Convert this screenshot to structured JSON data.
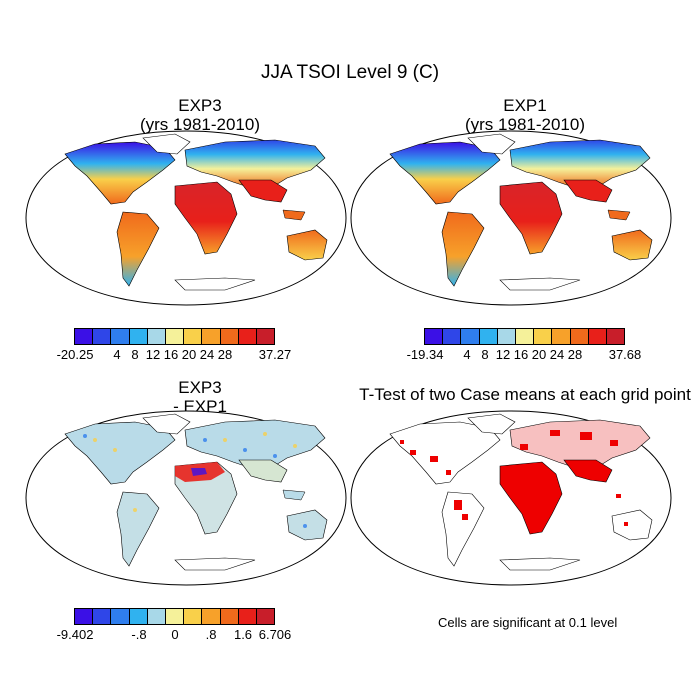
{
  "figure": {
    "title": "JJA TSOI Level 9 (C)"
  },
  "panels": [
    {
      "id": "exp3",
      "title_line1": "EXP3",
      "title_line2": "(yrs 1981-2010)"
    },
    {
      "id": "exp1",
      "title_line1": "EXP1",
      "title_line2": "(yrs 1981-2010)"
    },
    {
      "id": "diff",
      "title_line1": "EXP3",
      "title_line2": "- EXP1"
    },
    {
      "id": "ttest",
      "title_line1": "T-Test of two Case means at each grid point"
    }
  ],
  "colorbars": {
    "exp3": {
      "colors": [
        "#3b10e6",
        "#2f46e8",
        "#2f7eee",
        "#30b2ef",
        "#a8d8e8",
        "#f5f19a",
        "#f9d04a",
        "#f7a12a",
        "#f06a1c",
        "#e8201a",
        "#c81e2a"
      ],
      "labels": [
        "-20.25",
        "4",
        "8",
        "12",
        "16",
        "20",
        "24",
        "28",
        "37.27"
      ]
    },
    "exp1": {
      "colors": [
        "#3b10e6",
        "#2f46e8",
        "#2f7eee",
        "#30b2ef",
        "#a8d8e8",
        "#f5f19a",
        "#f9d04a",
        "#f7a12a",
        "#f06a1c",
        "#e8201a",
        "#c81e2a"
      ],
      "labels": [
        "-19.34",
        "4",
        "8",
        "12",
        "16",
        "20",
        "24",
        "28",
        "37.68"
      ]
    },
    "diff": {
      "colors": [
        "#3b10e6",
        "#2f46e8",
        "#2f7eee",
        "#30b2ef",
        "#a8d8e8",
        "#f5f19a",
        "#f9d04a",
        "#f7a12a",
        "#f06a1c",
        "#e8201a",
        "#c81e2a"
      ],
      "labels": [
        "-9.402",
        "-.8",
        "0",
        ".8",
        "1.6",
        "6.706"
      ]
    }
  },
  "footnote": "Cells are significant at 0.1 level",
  "colors": {
    "land_cold": "#3b10e6",
    "land_hot": "#d8242a",
    "diff_neutral": "#b9dbe8",
    "significant": "#ee0000",
    "coastline": "#000000"
  }
}
